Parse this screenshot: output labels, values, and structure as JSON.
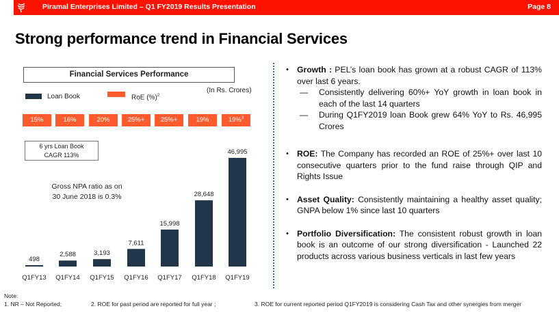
{
  "header": {
    "title": "Piramal Enterprises Limited – Q1 FY2019 Results Presentation",
    "page": "Page 8",
    "logo_icon": "piramal-logo-icon",
    "brand_color": "#ff1200"
  },
  "page_title": "Strong performance trend in Financial Services",
  "chart_panel": {
    "header": "Financial Services Performance",
    "units": "(In Rs. Crores)",
    "legend": [
      {
        "label": "Loan Book",
        "color": "#22364a"
      },
      {
        "label": "RoE (%)",
        "sup": "2",
        "color": "#ff5b2e"
      }
    ],
    "roe": [
      {
        "text": "15%",
        "sup": ""
      },
      {
        "text": "16%",
        "sup": ""
      },
      {
        "text": "20%",
        "sup": ""
      },
      {
        "text": "25%+",
        "sup": ""
      },
      {
        "text": "25%+",
        "sup": ""
      },
      {
        "text": "19%",
        "sup": ""
      },
      {
        "text": "19%",
        "sup": "3"
      }
    ],
    "cagr_line1": "6 yrs Loan Book",
    "cagr_line2": "CAGR 113%",
    "npa_line1": "Gross NPA ratio as on",
    "npa_line2": "30 June 2018 is 0.3%"
  },
  "chart_data": {
    "type": "bar",
    "title": "Financial Services Performance",
    "xlabel": "",
    "ylabel": "",
    "units": "In Rs. Crores",
    "categories": [
      "Q1FY13",
      "Q1FY14",
      "Q1FY15",
      "Q1FY16",
      "Q1FY17",
      "Q1FY18",
      "Q1FY19"
    ],
    "series": [
      {
        "name": "Loan Book",
        "color": "#22364a",
        "values": [
          498,
          2588,
          3193,
          7611,
          15998,
          28648,
          46995
        ],
        "labels": [
          "498",
          "2,588",
          "3,193",
          "7,611",
          "15,998",
          "28,648",
          "46,995"
        ]
      }
    ],
    "roe_series": {
      "name": "RoE (%)",
      "values": [
        "15%",
        "16%",
        "20%",
        "25%+",
        "25%+",
        "19%",
        "19%"
      ]
    },
    "ylim": [
      0,
      47000
    ],
    "grid": false,
    "legend_position": "top-left"
  },
  "bullets": [
    {
      "bold": "Growth :",
      "text": " PEL’s loan book has grown at a robust CAGR of 113% over last 6 years.",
      "subs": [
        "Consistently delivering 60%+ YoY growth in loan book in each of the last 14 quarters",
        "During Q1FY2019 loan Book grew 64% YoY to Rs. 46,995 Crores"
      ]
    },
    {
      "bold": "ROE:",
      "text": " The Company has recorded an ROE of 25%+ over last 10 consecutive quarters prior to the fund raise through QIP and Rights Issue"
    },
    {
      "bold": "Asset Quality:",
      "text": " Consistently maintaining a healthy asset quality; GNPA below 1% since last 10 quarters"
    },
    {
      "bold": "Portfolio Diversification:",
      "text": " The consistent robust growth in loan book is an outcome of our strong diversification - Launched 22 products across various business verticals in last few years"
    }
  ],
  "bullet_glyph": "•",
  "dash_glyph": "—",
  "notes": {
    "heading": "Note:",
    "items": [
      "1.   NR – Not Reported;",
      "2.    ROE for past period are reported for full year ;",
      "3.   ROE for current reported period Q1FY2019 is considering Cash Tax and other synergies from merger"
    ]
  }
}
